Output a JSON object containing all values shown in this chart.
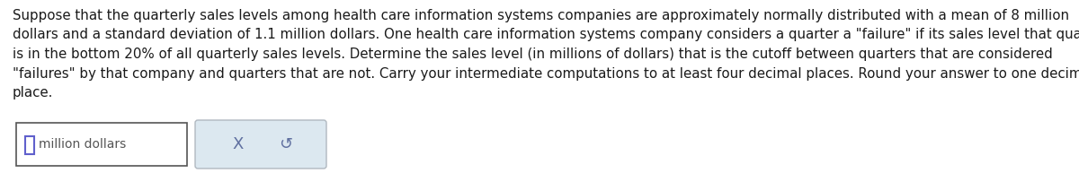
{
  "lines": [
    "Suppose that the quarterly sales levels among health care information systems companies are approximately normally distributed with a mean of 8 million",
    "dollars and a standard deviation of 1.1 million dollars. One health care information systems company considers a quarter a \"failure\" if its sales level that quarter",
    "is in the bottom 20% of all quarterly sales levels. Determine the sales level (in millions of dollars) that is the cutoff between quarters that are considered",
    "\"failures\" by that company and quarters that are not. Carry your intermediate computations to at least four decimal places. Round your answer to one decimal",
    "place."
  ],
  "input_box_label": "million dollars",
  "button_x_label": "X",
  "button_undo_label": "↺",
  "bg_color": "#ffffff",
  "text_color": "#1a1a1a",
  "font_size": 10.8,
  "input_border_color": "#555555",
  "button_bg_color": "#dce8f0",
  "button_border_color": "#b0b8c0",
  "input_cursor_color": "#6060cc",
  "cursor_border_color": "#6060cc",
  "button_text_color": "#6070a0"
}
